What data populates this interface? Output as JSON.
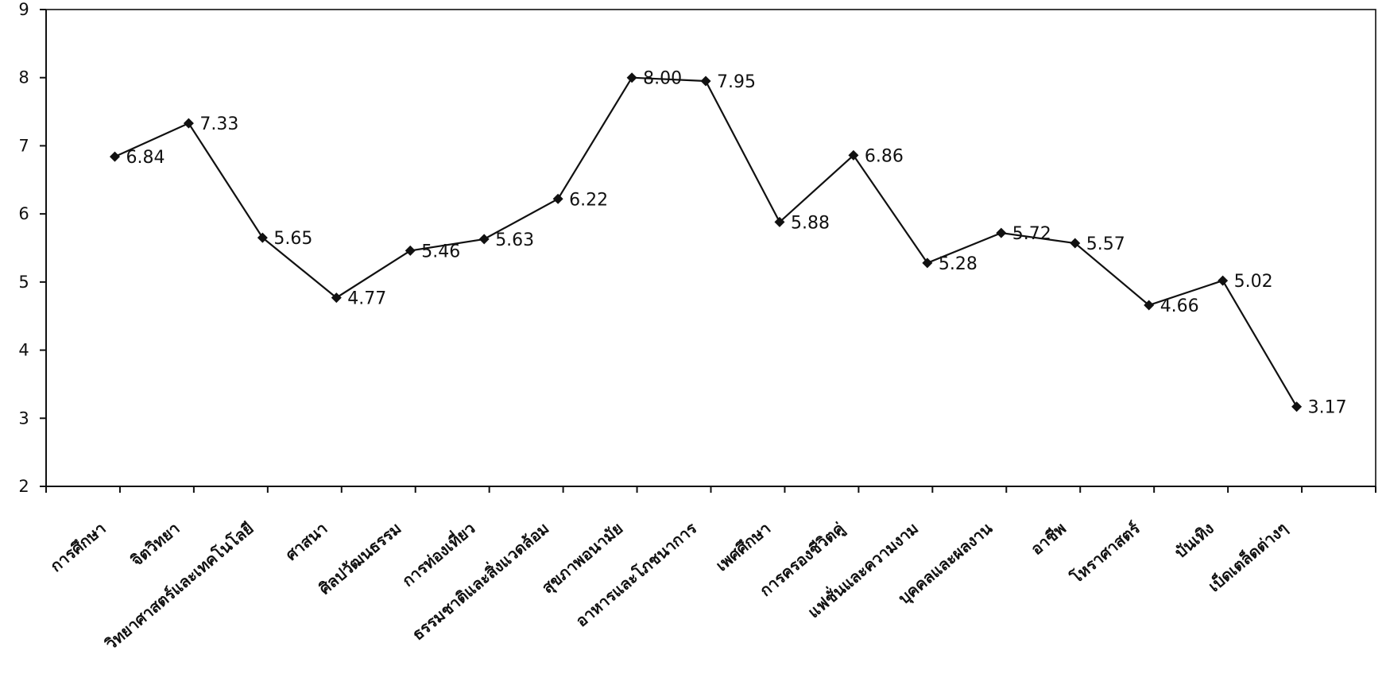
{
  "chart_data": {
    "type": "line",
    "title": "",
    "xlabel": "",
    "ylabel": "",
    "ylim": [
      2,
      9
    ],
    "yticks": [
      "2",
      "3",
      "4",
      "5",
      "6",
      "7",
      "8",
      "9"
    ],
    "grid": false,
    "legend": "none",
    "categories": [
      "การศึกษา",
      "จิตวิทยา",
      "วิทยาศาสตร์และเทคโนโลยี",
      "ศาสนา",
      "ศิลปวัฒนธรรม",
      "การท่องเที่ยว",
      "ธรรมชาติและสิ่งแวดล้อม",
      "สุขภาพอนามัย",
      "อาหารและโภชนาการ",
      "เพศศึกษา",
      "การครองชีวิตคู่",
      "แฟชั่นและความงาม",
      "บุคคลและผลงาน",
      "อาชีพ",
      "โหราศาสตร์",
      "บันเทิง",
      "เบ็ดเตล็ดต่างๆ"
    ],
    "series": [
      {
        "values": [
          6.84,
          7.33,
          5.65,
          4.77,
          5.46,
          5.63,
          6.22,
          8.0,
          7.95,
          5.88,
          6.86,
          5.28,
          5.72,
          5.57,
          4.66,
          5.02,
          3.17
        ],
        "labels": [
          "6.84",
          "7.33",
          "5.65",
          "4.77",
          "5.46",
          "5.63",
          "6.22",
          "8.00",
          "7.95",
          "5.88",
          "6.86",
          "5.28",
          "5.72",
          "5.57",
          "4.66",
          "5.02",
          "3.17"
        ],
        "color": "#111111"
      }
    ]
  }
}
